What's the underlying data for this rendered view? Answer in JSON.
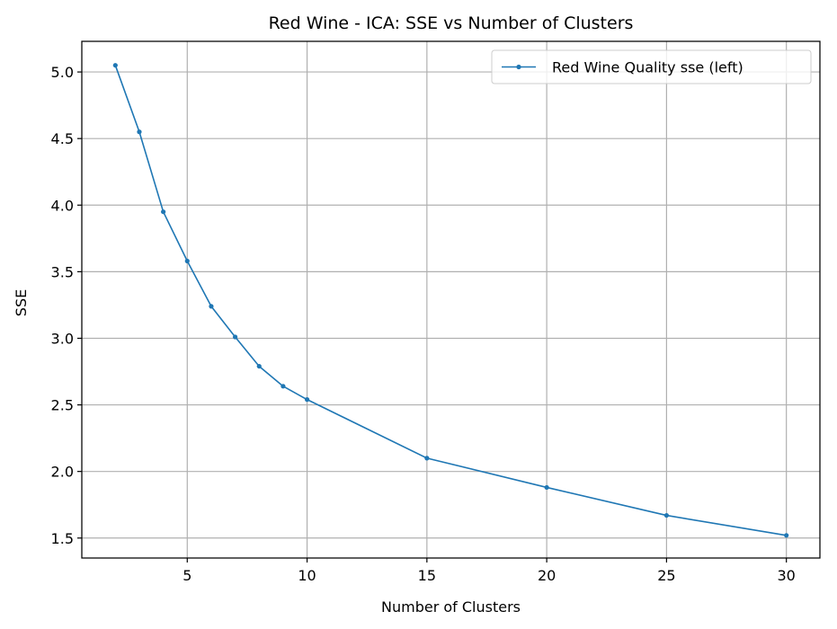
{
  "chart_data": {
    "type": "line",
    "title": "Red Wine - ICA: SSE vs Number of Clusters",
    "xlabel": "Number of Clusters",
    "ylabel": "SSE",
    "xlim": [
      0.6,
      31.4
    ],
    "ylim": [
      1.35,
      5.23
    ],
    "xticks": [
      5,
      10,
      15,
      20,
      25,
      30
    ],
    "yticks": [
      1.5,
      2.0,
      2.5,
      3.0,
      3.5,
      4.0,
      4.5,
      5.0
    ],
    "xtick_labels": [
      "5",
      "10",
      "15",
      "20",
      "25",
      "30"
    ],
    "ytick_labels": [
      "1.5",
      "2.0",
      "2.5",
      "3.0",
      "3.5",
      "4.0",
      "4.5",
      "5.0"
    ],
    "grid": true,
    "legend_position": "top-right",
    "series": [
      {
        "name": "Red Wine Quality sse (left)",
        "color": "#1f77b4",
        "x": [
          2,
          3,
          4,
          5,
          6,
          7,
          8,
          9,
          10,
          15,
          20,
          25,
          30
        ],
        "y": [
          5.05,
          4.55,
          3.95,
          3.58,
          3.24,
          3.01,
          2.79,
          2.64,
          2.54,
          2.1,
          1.88,
          1.67,
          1.52
        ]
      }
    ]
  }
}
